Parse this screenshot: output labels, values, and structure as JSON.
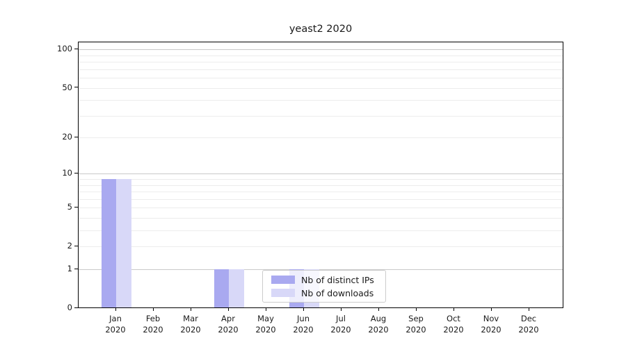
{
  "title": "yeast2 2020",
  "chart_data": {
    "type": "bar",
    "title": "yeast2 2020",
    "categories": [
      "Jan\n2020",
      "Feb\n2020",
      "Mar\n2020",
      "Apr\n2020",
      "May\n2020",
      "Jun\n2020",
      "Jul\n2020",
      "Aug\n2020",
      "Sep\n2020",
      "Oct\n2020",
      "Nov\n2020",
      "Dec\n2020"
    ],
    "series": [
      {
        "name": "Nb of distinct IPs",
        "color": "#a9a9f0",
        "values": [
          9,
          0,
          0,
          1,
          0,
          1,
          0,
          0,
          0,
          0,
          0,
          0
        ]
      },
      {
        "name": "Nb of downloads",
        "color": "#d8d8f8",
        "values": [
          9,
          0,
          0,
          1,
          0,
          1,
          0,
          0,
          0,
          0,
          0,
          0
        ]
      }
    ],
    "xlabel": "",
    "ylabel": "",
    "y_scale": "log1p",
    "ylim": [
      0,
      114
    ],
    "y_ticks": [
      100,
      50,
      20,
      10,
      5,
      2,
      1,
      0
    ],
    "gridlines": {
      "major": [
        1,
        10,
        100
      ],
      "minor": [
        2,
        3,
        4,
        5,
        6,
        7,
        8,
        9,
        20,
        30,
        40,
        50,
        60,
        70,
        80,
        90
      ],
      "major_color": "#c9c9c9",
      "minor_color": "#ececec"
    },
    "grid": true,
    "legend_position": "lower center (inside plot)",
    "colors": {
      "axis": "#000000",
      "text": "#1a1a1a",
      "legend_border": "#cccccc",
      "background": "#ffffff"
    }
  }
}
